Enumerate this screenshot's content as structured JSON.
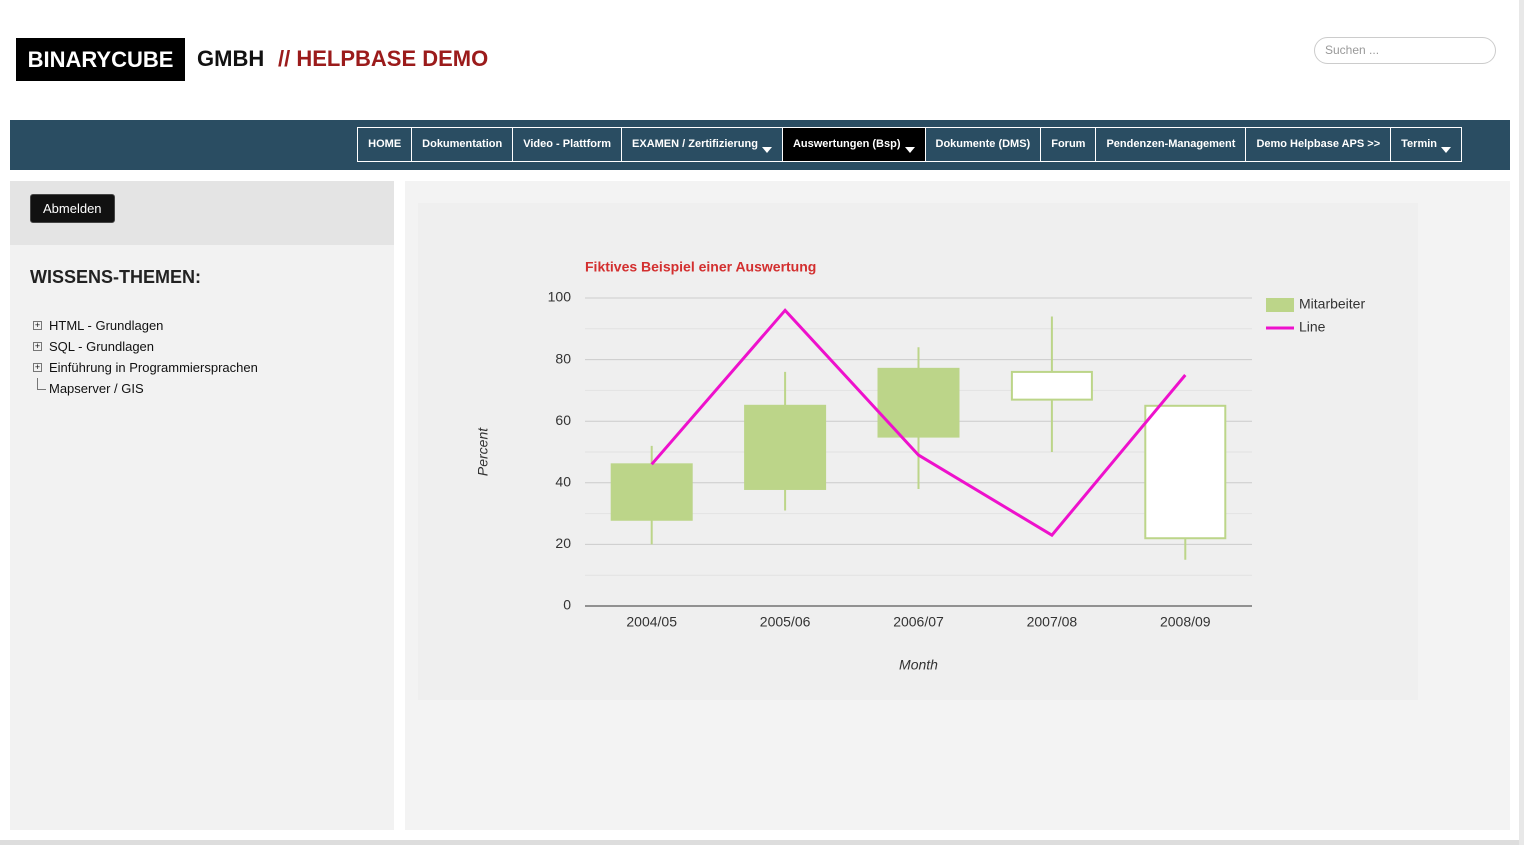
{
  "header": {
    "logo": "BINARYCUBE",
    "company": "GMBH",
    "subtitle": "// HELPBASE DEMO",
    "search_placeholder": "Suchen ..."
  },
  "nav": [
    {
      "label": "HOME"
    },
    {
      "label": "Dokumentation"
    },
    {
      "label": "Video - Plattform"
    },
    {
      "label": "EXAMEN / Zertifizierung",
      "dropdown": true
    },
    {
      "label": "Auswertungen (Bsp)",
      "dropdown": true,
      "active": true
    },
    {
      "label": "Dokumente (DMS)"
    },
    {
      "label": "Forum"
    },
    {
      "label": "Pendenzen-Management"
    },
    {
      "label": "Demo Helpbase APS >>"
    },
    {
      "label": "Termin",
      "dropdown": true
    }
  ],
  "sidebar": {
    "button": "Abmelden",
    "heading": "WISSENS-THEMEN:",
    "tree": [
      {
        "label": "HTML - Grundlagen",
        "expandable": true
      },
      {
        "label": "SQL - Grundlagen",
        "expandable": true
      },
      {
        "label": "Einführung in Programmiersprachen",
        "expandable": true
      },
      {
        "label": "Mapserver / GIS",
        "expandable": false
      }
    ]
  },
  "chart_data": {
    "type": "candlestick",
    "title": "Fiktives Beispiel einer Auswertung",
    "x_label": "Month",
    "y_label": "Percent",
    "categories": [
      "2004/05",
      "2005/06",
      "2006/07",
      "2007/08",
      "2008/09"
    ],
    "series": [
      {
        "name": "Mitarbeiter",
        "type": "candlestick",
        "color": "#bcd589",
        "low": [
          20,
          31,
          38,
          50,
          15
        ],
        "open": [
          46,
          65,
          77,
          67,
          22
        ],
        "close": [
          28,
          38,
          55,
          76,
          65
        ],
        "high": [
          52,
          76,
          84,
          94,
          65
        ]
      },
      {
        "name": "Line",
        "type": "line",
        "color": "#ee11cc",
        "values": [
          46,
          96,
          49,
          23,
          75
        ]
      }
    ],
    "ylim": [
      0,
      100
    ],
    "yticks": [
      0,
      20,
      40,
      60,
      80,
      100
    ],
    "y_minor_ticks": [
      10,
      30,
      50,
      70,
      90
    ],
    "grid": true,
    "legend": "right"
  }
}
